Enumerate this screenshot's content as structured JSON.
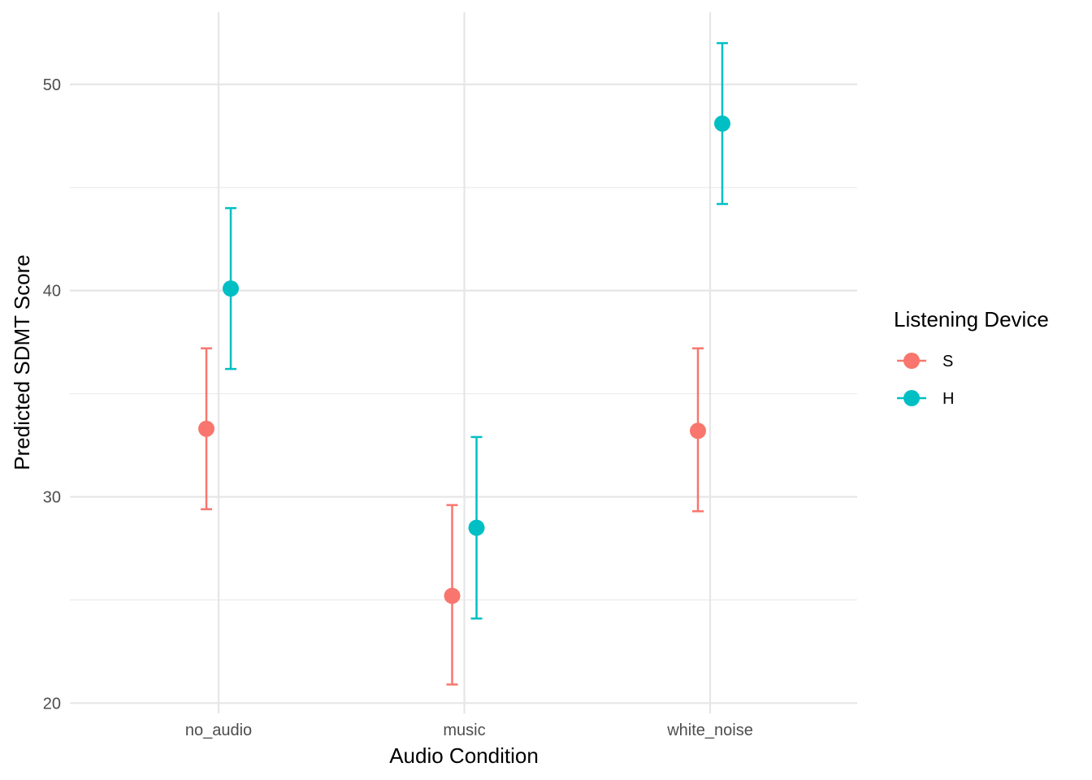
{
  "chart_data": {
    "type": "scatter",
    "title": "",
    "xlabel": "Audio Condition",
    "ylabel": "Predicted SDMT Score",
    "categories": [
      "no_audio",
      "music",
      "white_noise"
    ],
    "ylim": [
      19.5,
      53.5
    ],
    "yticks": [
      20,
      30,
      40,
      50
    ],
    "grid": true,
    "legend": {
      "title": "Listening Device",
      "placement": "right"
    },
    "series": [
      {
        "name": "S",
        "color": "#F8766D",
        "values": [
          33.3,
          25.2,
          33.2
        ],
        "lower": [
          29.4,
          20.9,
          29.3
        ],
        "upper": [
          37.2,
          29.6,
          37.2
        ]
      },
      {
        "name": "H",
        "color": "#00BFC4",
        "values": [
          40.1,
          28.5,
          48.1
        ],
        "lower": [
          36.2,
          24.1,
          44.2
        ],
        "upper": [
          44.0,
          32.9,
          52.0
        ]
      }
    ]
  }
}
